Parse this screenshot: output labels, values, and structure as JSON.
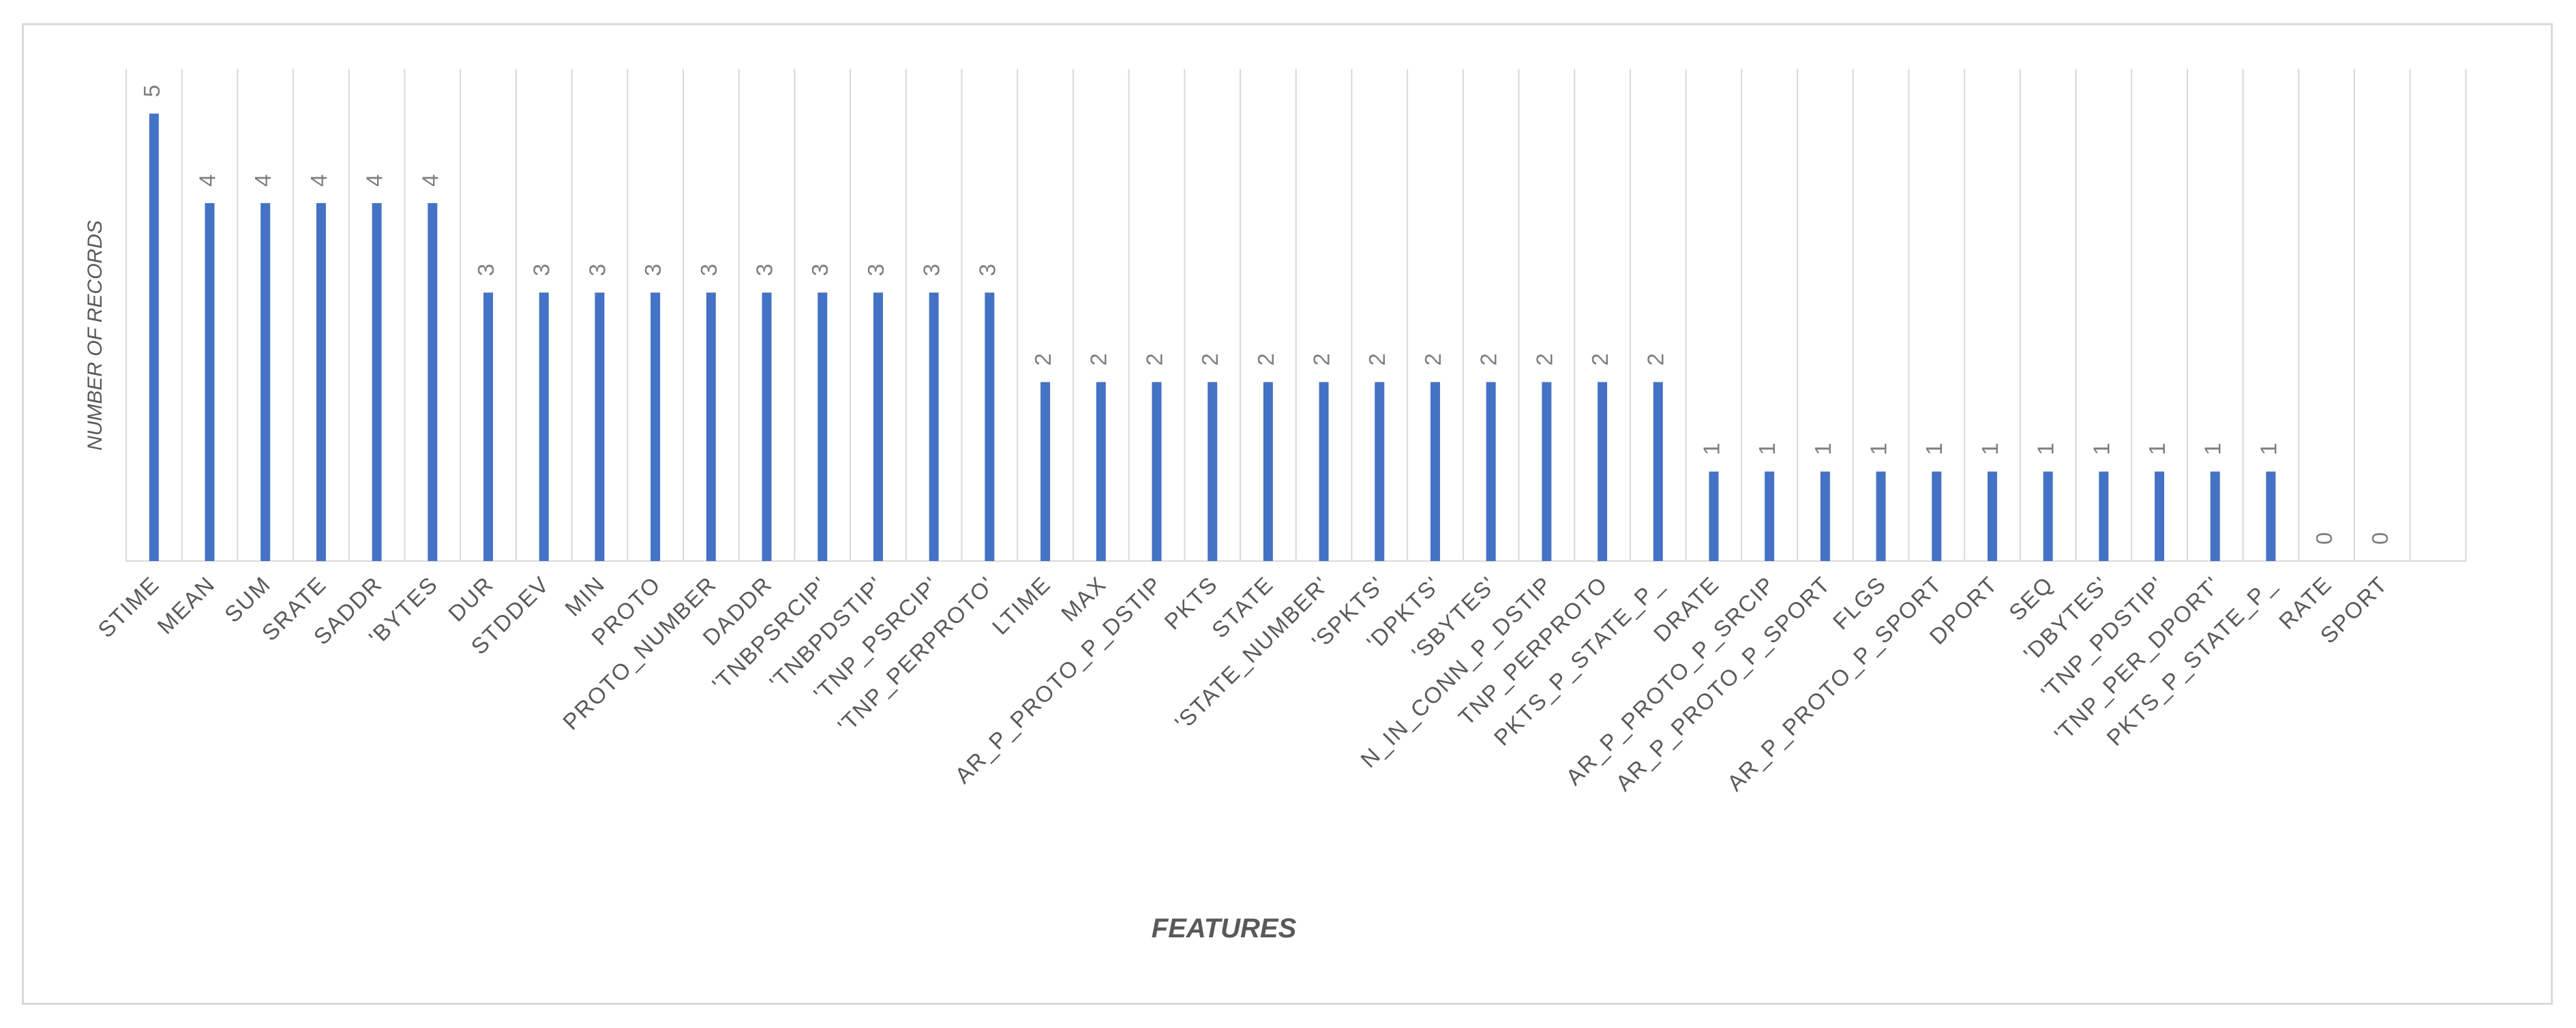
{
  "chart_data": {
    "type": "bar",
    "title": "",
    "xlabel": "FEATURES",
    "ylabel": "NUMBER OF RECORDS",
    "ylim": [
      0,
      5.5
    ],
    "grid": "vertical",
    "legend": "none",
    "bar_color": "#4472c4",
    "categories": [
      "STIME",
      "MEAN",
      "SUM",
      "SRATE",
      "SADDR",
      "'BYTES",
      "DUR",
      "STDDEV",
      "MIN",
      "PROTO",
      "PROTO_NUMBER",
      "DADDR",
      "'TNBPSRCIP'",
      "'TNBPDSTIP'",
      "'TNP_PSRCIP'",
      "'TNP_PERPROTO'",
      "LTIME",
      "MAX",
      "AR_P_PROTO_P_DSTIP",
      "PKTS",
      "STATE",
      "'STATE_NUMBER'",
      "'SPKTS'",
      "'DPKTS'",
      "'SBYTES'",
      "N_IN_CONN_P_DSTIP",
      "TNP_PERPROTO",
      "PKTS_P_STATE_P_",
      "DRATE",
      "AR_P_PROTO_P_SRCIP",
      "AR_P_PROTO_P_SPORT",
      "FLGS",
      "AR_P_PROTO_P_SPORT",
      "DPORT",
      "SEQ",
      "'DBYTES'",
      "'TNP_PDSTIP'",
      "'TNP_PER_DPORT'",
      "PKTS_P_STATE_P_",
      "RATE",
      "SPORT"
    ],
    "values": [
      5,
      4,
      4,
      4,
      4,
      4,
      3,
      3,
      3,
      3,
      3,
      3,
      3,
      3,
      3,
      3,
      2,
      2,
      2,
      2,
      2,
      2,
      2,
      2,
      2,
      2,
      2,
      2,
      1,
      1,
      1,
      1,
      1,
      1,
      1,
      1,
      1,
      1,
      1,
      0,
      0
    ],
    "data_labels": [
      "5",
      "4",
      "4",
      "4",
      "4",
      "4",
      "3",
      "3",
      "3",
      "3",
      "3",
      "3",
      "3",
      "3",
      "3",
      "3",
      "2",
      "2",
      "2",
      "2",
      "2",
      "2",
      "2",
      "2",
      "2",
      "2",
      "2",
      "2",
      "1",
      "1",
      "1",
      "1",
      "1",
      "1",
      "1",
      "1",
      "1",
      "1",
      "1",
      "0",
      "0"
    ]
  }
}
